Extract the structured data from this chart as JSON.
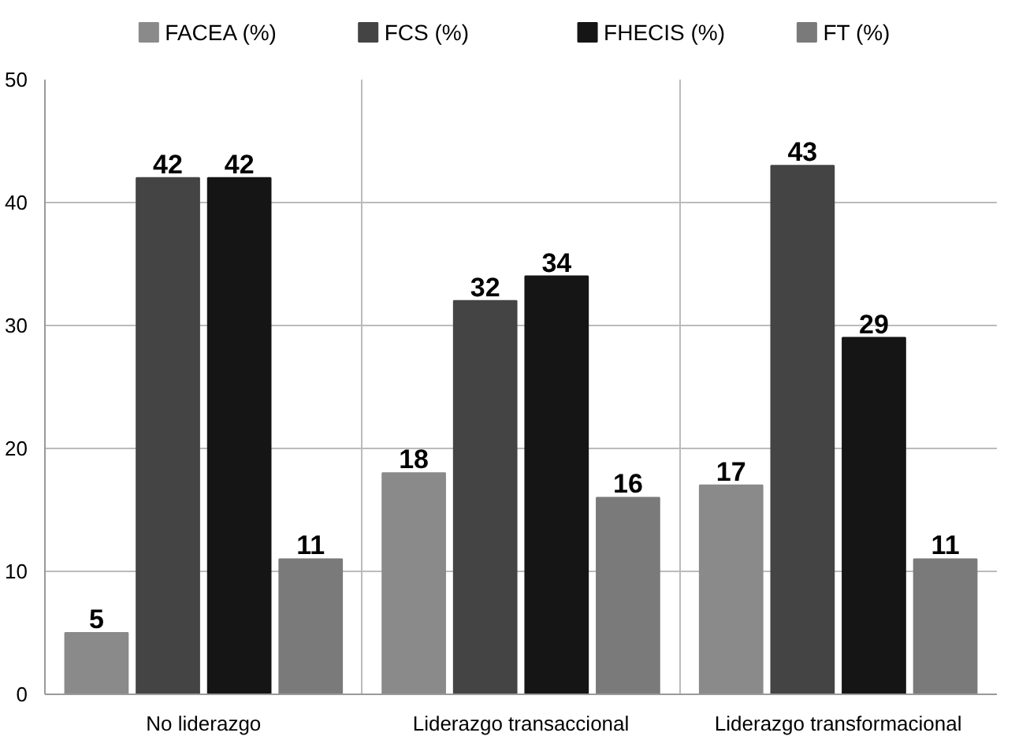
{
  "chart_data": {
    "type": "bar",
    "categories": [
      "No liderazgo",
      "Liderazgo transaccional",
      "Liderazgo transformacional"
    ],
    "series": [
      {
        "name": "FACEA (%)",
        "color": "#8a8a8a",
        "values": [
          5,
          18,
          17
        ]
      },
      {
        "name": "FCS (%)",
        "color": "#444444",
        "values": [
          42,
          32,
          43
        ]
      },
      {
        "name": "FHECIS (%)",
        "color": "#151515",
        "values": [
          42,
          34,
          29
        ]
      },
      {
        "name": "FT (%)",
        "color": "#7a7a7a",
        "values": [
          11,
          16,
          11
        ]
      }
    ],
    "ylim": [
      0,
      50
    ],
    "yticks": [
      0,
      10,
      20,
      30,
      40,
      50
    ],
    "grid": true,
    "legend": "top",
    "data_labels": true
  }
}
